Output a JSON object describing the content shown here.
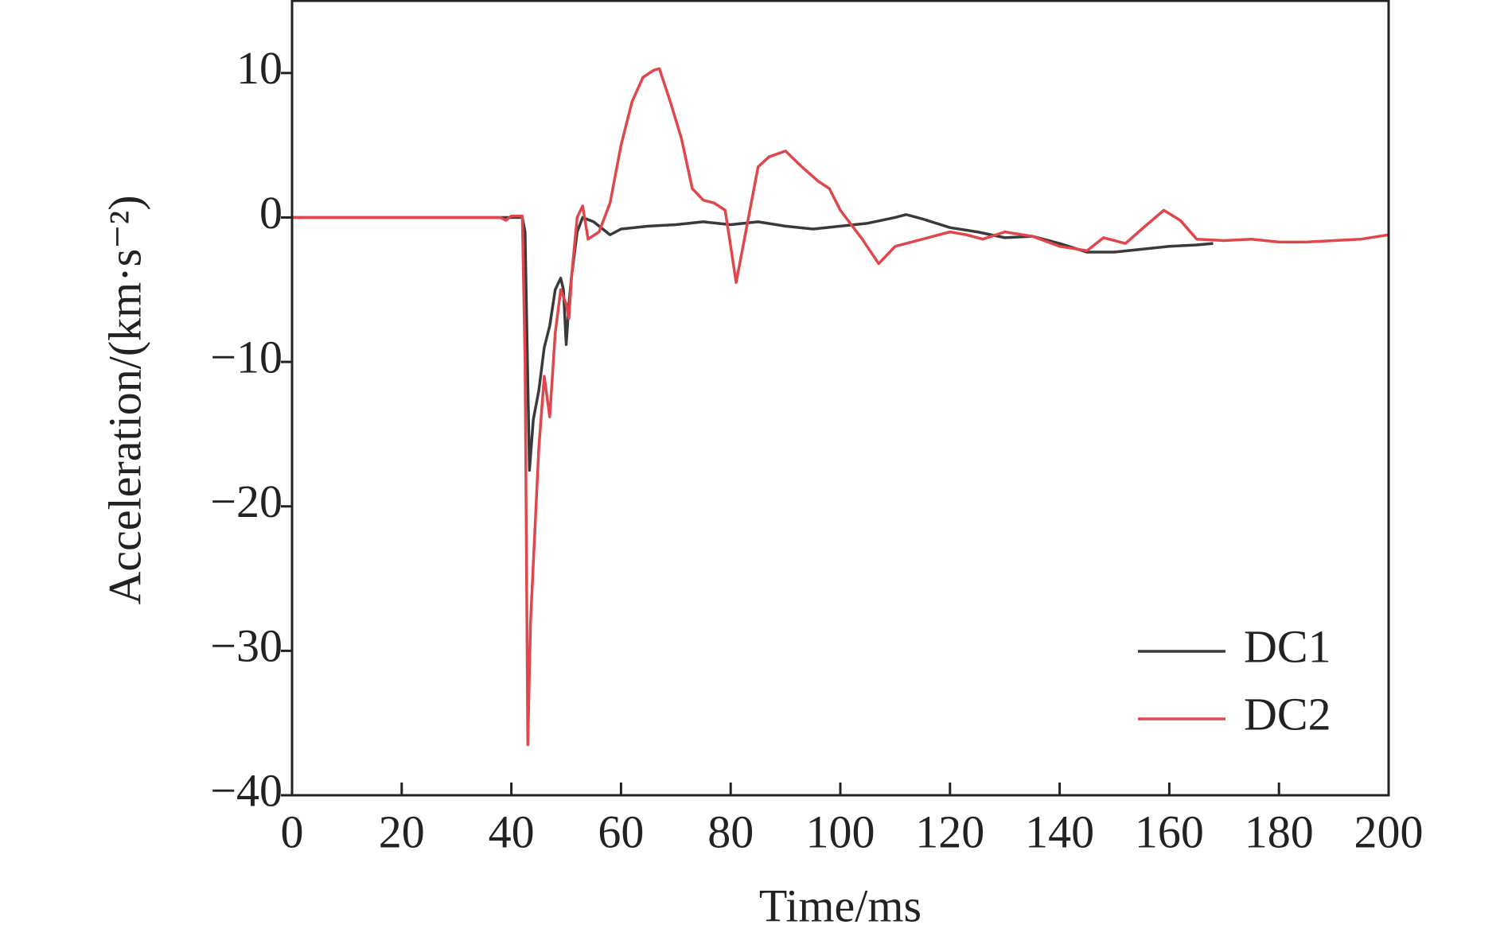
{
  "chart_data": {
    "type": "line",
    "xlabel": "Time/ms",
    "ylabel": "Acceleration/(km·s⁻²)",
    "xlim": [
      0,
      200
    ],
    "xticks": [
      0,
      20,
      40,
      60,
      80,
      100,
      120,
      140,
      160,
      180,
      200
    ],
    "ylim": [
      -40,
      15
    ],
    "yticks": [
      {
        "value": -40,
        "label": "−40"
      },
      {
        "value": -30,
        "label": "−30"
      },
      {
        "value": -20,
        "label": "−20"
      },
      {
        "value": -10,
        "label": "−10"
      },
      0,
      10
    ],
    "legend": "lower right",
    "series": [
      {
        "name": "DC1",
        "color": "#3a3a3a",
        "x": [
          0,
          42,
          42.5,
          43.3,
          44,
          45,
          46,
          47,
          48,
          49,
          49.5,
          50,
          50.5,
          51,
          52,
          53,
          55,
          58,
          60,
          65,
          70,
          75,
          80,
          85,
          90,
          95,
          100,
          105,
          110,
          112,
          115,
          120,
          125,
          130,
          135,
          140,
          145,
          150,
          155,
          160,
          165,
          168
        ],
        "values": [
          0,
          0,
          -1,
          -17.5,
          -14,
          -12,
          -9,
          -7.5,
          -5,
          -4.2,
          -5,
          -8.8,
          -6,
          -4,
          -1,
          0,
          -0.3,
          -1.2,
          -0.8,
          -0.6,
          -0.5,
          -0.3,
          -0.5,
          -0.3,
          -0.6,
          -0.8,
          -0.6,
          -0.4,
          0,
          0.2,
          -0.1,
          -0.7,
          -1,
          -1.4,
          -1.3,
          -1.8,
          -2.4,
          -2.4,
          -2.2,
          -2,
          -1.9,
          -1.8
        ]
      },
      {
        "name": "DC2",
        "color": "#e0474c",
        "x": [
          0,
          38,
          39,
          40,
          42,
          42.5,
          43,
          43.5,
          44,
          45,
          46,
          47,
          48,
          49,
          50,
          50.5,
          51,
          52,
          53,
          54,
          56,
          58,
          60,
          62,
          64,
          66,
          67,
          69,
          71,
          73,
          75,
          77,
          79,
          80,
          81,
          83,
          85,
          87,
          90,
          93,
          96,
          98,
          100,
          102,
          104,
          107,
          110,
          115,
          120,
          123,
          126,
          130,
          135,
          140,
          145,
          148,
          152,
          155,
          159,
          162,
          165,
          170,
          175,
          180,
          185,
          190,
          195,
          200
        ],
        "values": [
          0,
          0,
          -0.2,
          0.1,
          0.1,
          -10,
          -36.5,
          -28,
          -24,
          -16,
          -11,
          -13.8,
          -8,
          -5,
          -6,
          -7,
          -4,
          0,
          0.8,
          -1.5,
          -1,
          1,
          5,
          8,
          9.7,
          10.2,
          10.3,
          8,
          5.5,
          2,
          1.2,
          1,
          0.5,
          -2,
          -4.5,
          -0.5,
          3.5,
          4.2,
          4.6,
          3.5,
          2.5,
          2,
          0.5,
          -0.5,
          -1.5,
          -3.2,
          -2,
          -1.5,
          -1,
          -1.2,
          -1.5,
          -1,
          -1.3,
          -2,
          -2.3,
          -1.4,
          -1.8,
          -0.8,
          0.5,
          -0.2,
          -1.5,
          -1.6,
          -1.5,
          -1.7,
          -1.7,
          -1.6,
          -1.5,
          -1.2
        ]
      }
    ]
  }
}
